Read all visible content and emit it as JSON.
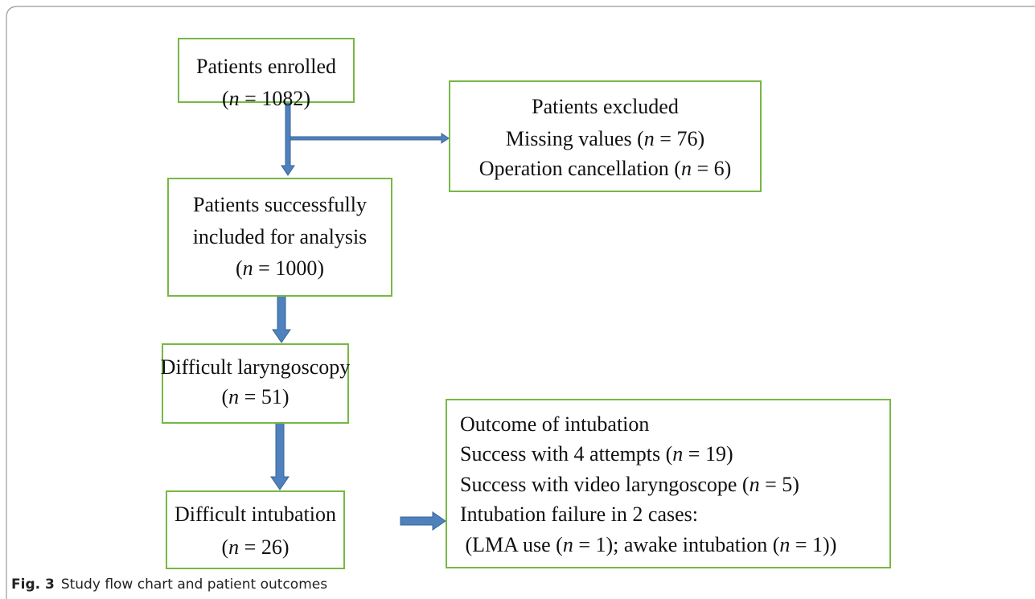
{
  "nodes": [
    {
      "lines": [
        "Patients enrolled",
        "(n = 1082)"
      ]
    },
    {
      "lines": [
        "Patients excluded",
        "Missing values (n = 76)",
        "Operation cancellation (n = 6)"
      ]
    },
    {
      "lines": [
        "Patients successfully",
        "included for analysis",
        "(n = 1000)"
      ]
    },
    {
      "lines": [
        "Difficult laryngoscopy",
        "(n = 51)"
      ]
    },
    {
      "lines": [
        "Difficult intubation",
        "(n = 26)"
      ]
    },
    {
      "lines": [
        "Outcome of intubation",
        "Success with 4 attempts (n = 19)",
        "Success with video laryngoscope (n = 5)",
        "Intubation failure in 2 cases:",
        " (LMA use (n = 1); awake intubation (n = 1))"
      ]
    }
  ],
  "caption": {
    "label": "Fig. 3",
    "text": "Study flow chart and patient outcomes"
  }
}
